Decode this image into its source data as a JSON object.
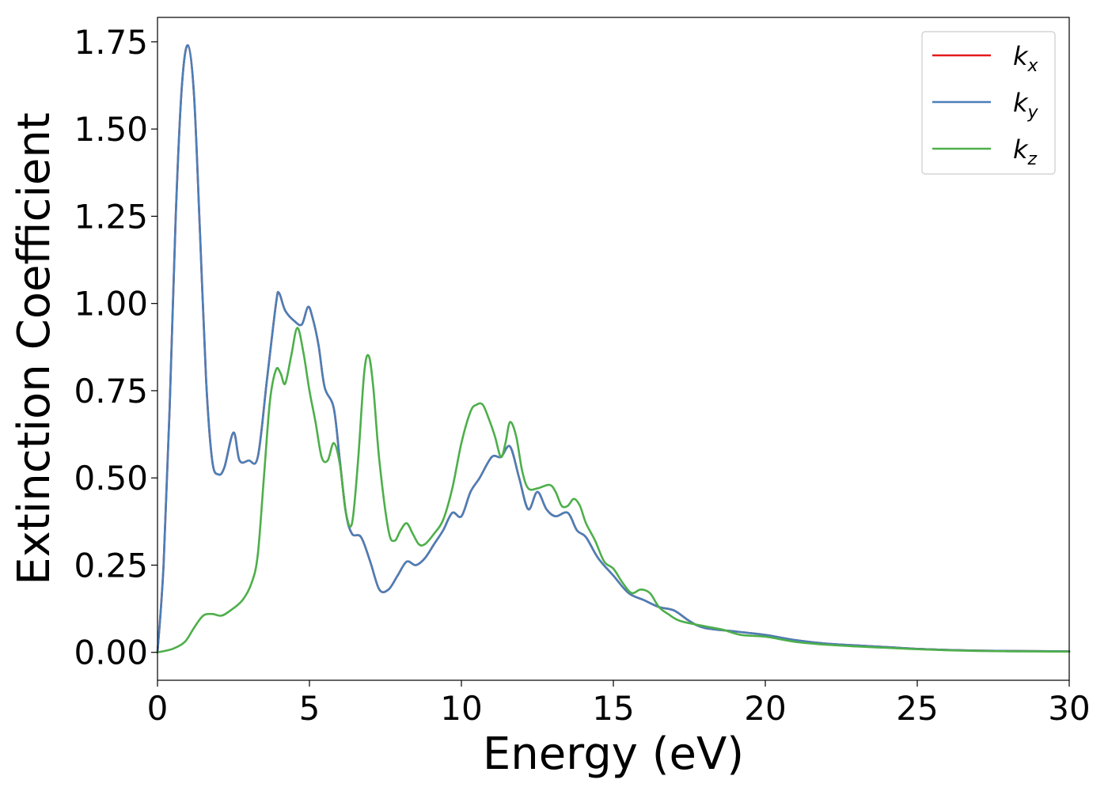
{
  "chart_data": {
    "type": "line",
    "title": "",
    "xlabel": "Energy (eV)",
    "ylabel": "Extinction Coefficient",
    "xlim": [
      0,
      30
    ],
    "ylim": [
      -0.08,
      1.82
    ],
    "xticks": [
      0,
      5,
      10,
      15,
      20,
      25,
      30
    ],
    "yticks": [
      0.0,
      0.25,
      0.5,
      0.75,
      1.0,
      1.25,
      1.5,
      1.75
    ],
    "ytick_labels": [
      "0.00",
      "0.25",
      "0.50",
      "0.75",
      "1.00",
      "1.25",
      "1.50",
      "1.75"
    ],
    "grid": false,
    "legend_position": "top-right",
    "series": [
      {
        "name": "k_x",
        "label_base": "k",
        "label_sub": "x",
        "color": "#e41a1c",
        "points": [
          [
            0,
            0
          ],
          [
            0.2,
            0.25
          ],
          [
            0.4,
            0.7
          ],
          [
            0.6,
            1.25
          ],
          [
            0.8,
            1.62
          ],
          [
            1.0,
            1.74
          ],
          [
            1.2,
            1.6
          ],
          [
            1.4,
            1.2
          ],
          [
            1.6,
            0.78
          ],
          [
            1.8,
            0.55
          ],
          [
            2.0,
            0.51
          ],
          [
            2.2,
            0.53
          ],
          [
            2.5,
            0.63
          ],
          [
            2.7,
            0.55
          ],
          [
            3.0,
            0.55
          ],
          [
            3.3,
            0.56
          ],
          [
            3.6,
            0.78
          ],
          [
            3.9,
            1.0
          ],
          [
            4.0,
            1.03
          ],
          [
            4.2,
            0.98
          ],
          [
            4.5,
            0.95
          ],
          [
            4.75,
            0.94
          ],
          [
            4.95,
            0.99
          ],
          [
            5.1,
            0.96
          ],
          [
            5.3,
            0.88
          ],
          [
            5.5,
            0.76
          ],
          [
            5.8,
            0.7
          ],
          [
            6.0,
            0.55
          ],
          [
            6.2,
            0.4
          ],
          [
            6.4,
            0.34
          ],
          [
            6.7,
            0.33
          ],
          [
            7.0,
            0.26
          ],
          [
            7.3,
            0.18
          ],
          [
            7.6,
            0.18
          ],
          [
            7.9,
            0.22
          ],
          [
            8.2,
            0.26
          ],
          [
            8.5,
            0.25
          ],
          [
            8.8,
            0.27
          ],
          [
            9.1,
            0.31
          ],
          [
            9.4,
            0.35
          ],
          [
            9.7,
            0.4
          ],
          [
            10.0,
            0.39
          ],
          [
            10.3,
            0.46
          ],
          [
            10.6,
            0.5
          ],
          [
            11.0,
            0.56
          ],
          [
            11.3,
            0.56
          ],
          [
            11.6,
            0.59
          ],
          [
            11.9,
            0.5
          ],
          [
            12.2,
            0.41
          ],
          [
            12.5,
            0.46
          ],
          [
            12.8,
            0.41
          ],
          [
            13.1,
            0.39
          ],
          [
            13.5,
            0.4
          ],
          [
            13.8,
            0.35
          ],
          [
            14.1,
            0.33
          ],
          [
            14.5,
            0.27
          ],
          [
            15.0,
            0.22
          ],
          [
            15.5,
            0.17
          ],
          [
            16.0,
            0.15
          ],
          [
            16.5,
            0.13
          ],
          [
            17.0,
            0.12
          ],
          [
            17.5,
            0.09
          ],
          [
            18.0,
            0.07
          ],
          [
            19.0,
            0.06
          ],
          [
            20.0,
            0.05
          ],
          [
            21.0,
            0.035
          ],
          [
            22.0,
            0.025
          ],
          [
            23.0,
            0.02
          ],
          [
            24.0,
            0.015
          ],
          [
            25.0,
            0.01
          ],
          [
            26.0,
            0.007
          ],
          [
            27.0,
            0.005
          ],
          [
            28.0,
            0.004
          ],
          [
            30.0,
            0.003
          ]
        ]
      },
      {
        "name": "k_y",
        "label_base": "k",
        "label_sub": "y",
        "color": "#4a7fb8",
        "points": [
          [
            0,
            0
          ],
          [
            0.2,
            0.25
          ],
          [
            0.4,
            0.7
          ],
          [
            0.6,
            1.25
          ],
          [
            0.8,
            1.62
          ],
          [
            1.0,
            1.74
          ],
          [
            1.2,
            1.6
          ],
          [
            1.4,
            1.2
          ],
          [
            1.6,
            0.78
          ],
          [
            1.8,
            0.55
          ],
          [
            2.0,
            0.51
          ],
          [
            2.2,
            0.53
          ],
          [
            2.5,
            0.63
          ],
          [
            2.7,
            0.55
          ],
          [
            3.0,
            0.55
          ],
          [
            3.3,
            0.56
          ],
          [
            3.6,
            0.78
          ],
          [
            3.9,
            1.0
          ],
          [
            4.0,
            1.03
          ],
          [
            4.2,
            0.98
          ],
          [
            4.5,
            0.95
          ],
          [
            4.75,
            0.94
          ],
          [
            4.95,
            0.99
          ],
          [
            5.1,
            0.96
          ],
          [
            5.3,
            0.88
          ],
          [
            5.5,
            0.76
          ],
          [
            5.8,
            0.7
          ],
          [
            6.0,
            0.55
          ],
          [
            6.2,
            0.4
          ],
          [
            6.4,
            0.34
          ],
          [
            6.7,
            0.33
          ],
          [
            7.0,
            0.26
          ],
          [
            7.3,
            0.18
          ],
          [
            7.6,
            0.18
          ],
          [
            7.9,
            0.22
          ],
          [
            8.2,
            0.26
          ],
          [
            8.5,
            0.25
          ],
          [
            8.8,
            0.27
          ],
          [
            9.1,
            0.31
          ],
          [
            9.4,
            0.35
          ],
          [
            9.7,
            0.4
          ],
          [
            10.0,
            0.39
          ],
          [
            10.3,
            0.46
          ],
          [
            10.6,
            0.5
          ],
          [
            11.0,
            0.56
          ],
          [
            11.3,
            0.56
          ],
          [
            11.6,
            0.59
          ],
          [
            11.9,
            0.5
          ],
          [
            12.2,
            0.41
          ],
          [
            12.5,
            0.46
          ],
          [
            12.8,
            0.41
          ],
          [
            13.1,
            0.39
          ],
          [
            13.5,
            0.4
          ],
          [
            13.8,
            0.35
          ],
          [
            14.1,
            0.33
          ],
          [
            14.5,
            0.27
          ],
          [
            15.0,
            0.22
          ],
          [
            15.5,
            0.17
          ],
          [
            16.0,
            0.15
          ],
          [
            16.5,
            0.13
          ],
          [
            17.0,
            0.12
          ],
          [
            17.5,
            0.09
          ],
          [
            18.0,
            0.07
          ],
          [
            19.0,
            0.06
          ],
          [
            20.0,
            0.05
          ],
          [
            21.0,
            0.035
          ],
          [
            22.0,
            0.025
          ],
          [
            23.0,
            0.02
          ],
          [
            24.0,
            0.015
          ],
          [
            25.0,
            0.01
          ],
          [
            26.0,
            0.007
          ],
          [
            27.0,
            0.005
          ],
          [
            28.0,
            0.004
          ],
          [
            30.0,
            0.003
          ]
        ]
      },
      {
        "name": "k_z",
        "label_base": "k",
        "label_sub": "z",
        "color": "#4daf4a",
        "points": [
          [
            0,
            0
          ],
          [
            0.5,
            0.01
          ],
          [
            0.9,
            0.03
          ],
          [
            1.2,
            0.07
          ],
          [
            1.5,
            0.105
          ],
          [
            1.8,
            0.11
          ],
          [
            2.1,
            0.105
          ],
          [
            2.4,
            0.12
          ],
          [
            2.8,
            0.15
          ],
          [
            3.1,
            0.2
          ],
          [
            3.3,
            0.28
          ],
          [
            3.5,
            0.5
          ],
          [
            3.7,
            0.72
          ],
          [
            3.9,
            0.81
          ],
          [
            4.05,
            0.8
          ],
          [
            4.2,
            0.77
          ],
          [
            4.4,
            0.85
          ],
          [
            4.6,
            0.93
          ],
          [
            4.8,
            0.86
          ],
          [
            5.0,
            0.75
          ],
          [
            5.2,
            0.66
          ],
          [
            5.4,
            0.56
          ],
          [
            5.6,
            0.55
          ],
          [
            5.8,
            0.6
          ],
          [
            6.0,
            0.54
          ],
          [
            6.2,
            0.4
          ],
          [
            6.4,
            0.37
          ],
          [
            6.6,
            0.55
          ],
          [
            6.8,
            0.8
          ],
          [
            6.95,
            0.85
          ],
          [
            7.1,
            0.76
          ],
          [
            7.3,
            0.55
          ],
          [
            7.6,
            0.35
          ],
          [
            7.8,
            0.32
          ],
          [
            8.0,
            0.35
          ],
          [
            8.2,
            0.37
          ],
          [
            8.4,
            0.34
          ],
          [
            8.6,
            0.31
          ],
          [
            8.8,
            0.31
          ],
          [
            9.1,
            0.34
          ],
          [
            9.4,
            0.38
          ],
          [
            9.7,
            0.47
          ],
          [
            10.0,
            0.6
          ],
          [
            10.3,
            0.69
          ],
          [
            10.5,
            0.71
          ],
          [
            10.7,
            0.71
          ],
          [
            10.9,
            0.67
          ],
          [
            11.1,
            0.62
          ],
          [
            11.3,
            0.56
          ],
          [
            11.45,
            0.6
          ],
          [
            11.6,
            0.66
          ],
          [
            11.8,
            0.62
          ],
          [
            12.0,
            0.52
          ],
          [
            12.2,
            0.47
          ],
          [
            12.5,
            0.47
          ],
          [
            12.9,
            0.48
          ],
          [
            13.1,
            0.46
          ],
          [
            13.3,
            0.42
          ],
          [
            13.5,
            0.42
          ],
          [
            13.7,
            0.44
          ],
          [
            13.9,
            0.42
          ],
          [
            14.1,
            0.37
          ],
          [
            14.4,
            0.32
          ],
          [
            14.7,
            0.26
          ],
          [
            15.0,
            0.24
          ],
          [
            15.3,
            0.2
          ],
          [
            15.6,
            0.17
          ],
          [
            15.9,
            0.18
          ],
          [
            16.2,
            0.17
          ],
          [
            16.5,
            0.13
          ],
          [
            16.8,
            0.11
          ],
          [
            17.2,
            0.09
          ],
          [
            18.0,
            0.075
          ],
          [
            18.6,
            0.065
          ],
          [
            19.2,
            0.05
          ],
          [
            20.0,
            0.045
          ],
          [
            21.0,
            0.03
          ],
          [
            22.0,
            0.022
          ],
          [
            23.0,
            0.017
          ],
          [
            24.0,
            0.013
          ],
          [
            25.0,
            0.009
          ],
          [
            26.0,
            0.006
          ],
          [
            27.0,
            0.004
          ],
          [
            28.0,
            0.003
          ],
          [
            30.0,
            0.002
          ]
        ]
      }
    ]
  }
}
